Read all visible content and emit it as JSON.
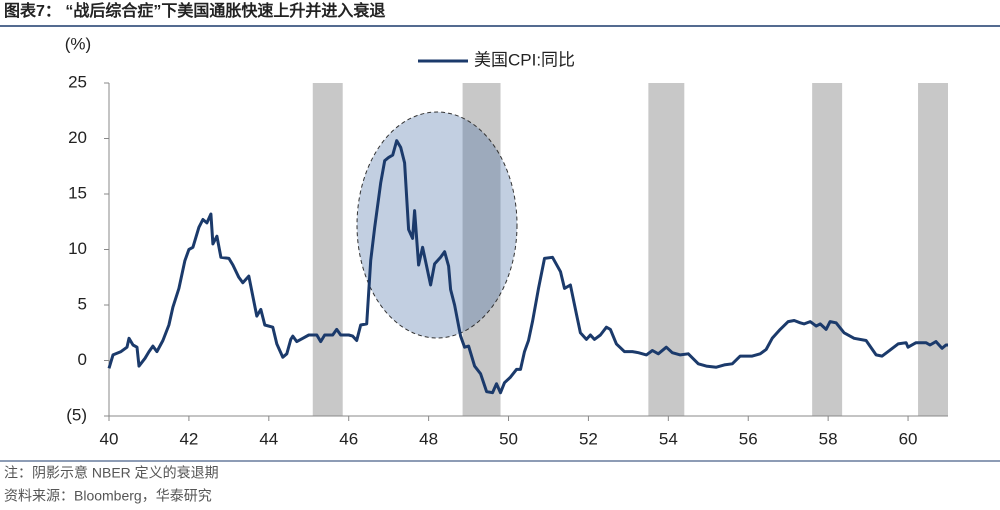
{
  "title": "图表7：  “战后综合症”下美国通胀快速上升并进入衰退",
  "notes": [
    "注：阴影示意 NBER 定义的衰退期",
    "资料来源：Bloomberg，华泰研究"
  ],
  "chart_data": {
    "type": "line",
    "ylabel": "(%)",
    "x": [
      40.0,
      40.1,
      40.3,
      40.45,
      40.5,
      40.6,
      40.7,
      40.75,
      40.9,
      41.0,
      41.1,
      41.2,
      41.35,
      41.5,
      41.6,
      41.75,
      41.9,
      42.0,
      42.1,
      42.25,
      42.35,
      42.45,
      42.55,
      42.6,
      42.7,
      42.8,
      43.0,
      43.1,
      43.25,
      43.35,
      43.5,
      43.6,
      43.7,
      43.8,
      43.9,
      44.1,
      44.2,
      44.35,
      44.45,
      44.55,
      44.6,
      44.7,
      44.85,
      45.0,
      45.2,
      45.3,
      45.4,
      45.6,
      45.7,
      45.8,
      46.0,
      46.1,
      46.2,
      46.3,
      46.45,
      46.55,
      46.65,
      46.8,
      46.9,
      47.0,
      47.1,
      47.2,
      47.3,
      47.4,
      47.5,
      47.6,
      47.65,
      47.75,
      47.85,
      47.95,
      48.05,
      48.15,
      48.3,
      48.4,
      48.5,
      48.55,
      48.65,
      48.8,
      48.9,
      49.0,
      49.15,
      49.3,
      49.45,
      49.6,
      49.7,
      49.8,
      49.9,
      50.05,
      50.2,
      50.3,
      50.4,
      50.5,
      50.6,
      50.75,
      50.9,
      51.1,
      51.3,
      51.4,
      51.55,
      51.7,
      51.8,
      51.95,
      52.05,
      52.15,
      52.3,
      52.45,
      52.55,
      52.7,
      52.9,
      53.1,
      53.25,
      53.45,
      53.6,
      53.75,
      53.95,
      54.1,
      54.3,
      54.5,
      54.75,
      54.95,
      55.2,
      55.4,
      55.6,
      55.8,
      56.1,
      56.3,
      56.45,
      56.6,
      56.8,
      57.0,
      57.15,
      57.3,
      57.4,
      57.55,
      57.7,
      57.8,
      57.95,
      58.05,
      58.2,
      58.4,
      58.65,
      58.95,
      59.2,
      59.35,
      59.5,
      59.75,
      59.95,
      60.0,
      60.2,
      60.45,
      60.55,
      60.7,
      60.85,
      60.95,
      61.0
    ],
    "series": [
      {
        "name": "美国CPI:同比",
        "color": "#1b3a6b",
        "values": [
          -0.7,
          0.5,
          0.8,
          1.2,
          2.0,
          1.4,
          1.2,
          -0.5,
          0.2,
          0.8,
          1.3,
          0.8,
          1.8,
          3.2,
          4.8,
          6.5,
          9.0,
          10.0,
          10.2,
          12.0,
          12.7,
          12.4,
          13.2,
          10.5,
          11.2,
          9.3,
          9.2,
          8.6,
          7.5,
          7.0,
          7.6,
          5.8,
          4.0,
          4.6,
          3.2,
          3.0,
          1.5,
          0.3,
          0.6,
          1.9,
          2.2,
          1.7,
          2.0,
          2.3,
          2.3,
          1.7,
          2.3,
          2.3,
          2.8,
          2.3,
          2.3,
          2.2,
          1.8,
          3.2,
          3.3,
          9.0,
          12.0,
          16.0,
          18.0,
          18.3,
          18.5,
          19.8,
          19.2,
          17.8,
          11.8,
          11.0,
          13.5,
          8.6,
          10.2,
          8.5,
          6.8,
          8.7,
          9.3,
          9.8,
          8.5,
          6.4,
          5.0,
          2.2,
          1.2,
          1.3,
          -0.5,
          -1.2,
          -2.8,
          -2.9,
          -2.1,
          -2.9,
          -2.0,
          -1.5,
          -0.8,
          -0.8,
          0.8,
          1.8,
          3.5,
          6.5,
          9.2,
          9.3,
          8.0,
          6.5,
          6.8,
          4.2,
          2.5,
          1.9,
          2.3,
          1.9,
          2.3,
          3.0,
          2.8,
          1.5,
          0.8,
          0.8,
          0.7,
          0.5,
          0.9,
          0.6,
          1.2,
          0.7,
          0.5,
          0.6,
          -0.3,
          -0.5,
          -0.6,
          -0.4,
          -0.3,
          0.4,
          0.4,
          0.6,
          1.0,
          2.0,
          2.8,
          3.5,
          3.6,
          3.4,
          3.3,
          3.5,
          3.1,
          3.3,
          2.8,
          3.5,
          3.4,
          2.5,
          2.0,
          1.8,
          0.5,
          0.4,
          0.8,
          1.5,
          1.6,
          1.2,
          1.6,
          1.6,
          1.4,
          1.7,
          1.1,
          1.4,
          1.4
        ]
      }
    ],
    "recessions": [
      [
        45.1,
        45.85
      ],
      [
        48.85,
        49.8
      ],
      [
        53.5,
        54.4
      ],
      [
        57.6,
        58.35
      ],
      [
        60.25,
        61.0
      ]
    ],
    "recession_color": "#c8c8c8",
    "xlim": [
      40,
      61
    ],
    "xticks": [
      40,
      42,
      44,
      46,
      48,
      50,
      52,
      54,
      56,
      58,
      60
    ],
    "ylim": [
      -5,
      25
    ],
    "yticks": [
      25,
      20,
      15,
      10,
      5,
      0,
      {
        "value": -5,
        "label": "(5)"
      }
    ],
    "legend": "top"
  }
}
